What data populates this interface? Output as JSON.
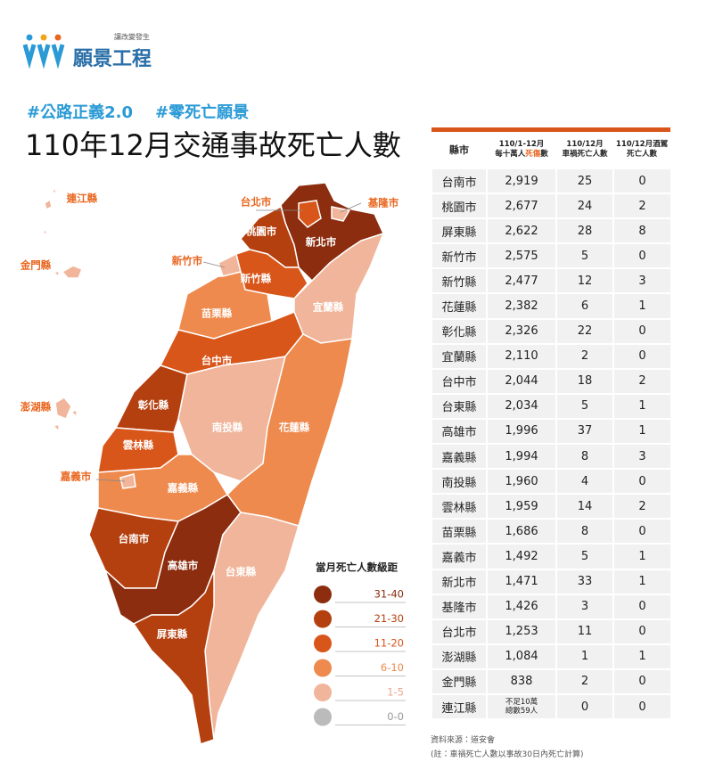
{
  "logo": {
    "tagline": "讓改變發生",
    "name": "願景工程"
  },
  "hashtags": [
    "#公路正義2.0",
    "#零死亡願景"
  ],
  "title": "110年12月交通事故死亡人數",
  "map_labels": [
    "連江縣",
    "金門縣",
    "澎湖縣",
    "嘉義市",
    "新竹市",
    "台北市",
    "基隆市",
    "桃園市",
    "新北市",
    "新竹縣",
    "苗栗縣",
    "宜蘭縣",
    "台中市",
    "彰化縣",
    "南投縣",
    "花蓮縣",
    "雲林縣",
    "嘉義縣",
    "台南市",
    "高雄市",
    "台東縣",
    "屏東縣"
  ],
  "legend": {
    "title": "當月死亡人數級距",
    "items": [
      "31-40",
      "21-30",
      "11-20",
      "6-10",
      "1-5",
      "0-0"
    ]
  },
  "table": {
    "headers": [
      [
        "縣市"
      ],
      [
        "110/1-12月",
        "每十萬人",
        "死傷",
        "數"
      ],
      [
        "110/12月",
        "車禍死亡人數"
      ],
      [
        "110/12月酒駕",
        "死亡人數"
      ]
    ],
    "rows": [
      [
        "台南市",
        "2,919",
        "25",
        "0"
      ],
      [
        "桃園市",
        "2,677",
        "24",
        "2"
      ],
      [
        "屏東縣",
        "2,622",
        "28",
        "8"
      ],
      [
        "新竹市",
        "2,575",
        "5",
        "0"
      ],
      [
        "新竹縣",
        "2,477",
        "12",
        "3"
      ],
      [
        "花蓮縣",
        "2,382",
        "6",
        "1"
      ],
      [
        "彰化縣",
        "2,326",
        "22",
        "0"
      ],
      [
        "宜蘭縣",
        "2,110",
        "2",
        "0"
      ],
      [
        "台中市",
        "2,044",
        "18",
        "2"
      ],
      [
        "台東縣",
        "2,034",
        "5",
        "1"
      ],
      [
        "高雄市",
        "1,996",
        "37",
        "1"
      ],
      [
        "嘉義縣",
        "1,994",
        "8",
        "3"
      ],
      [
        "南投縣",
        "1,960",
        "4",
        "0"
      ],
      [
        "雲林縣",
        "1,959",
        "14",
        "2"
      ],
      [
        "苗栗縣",
        "1,686",
        "8",
        "0"
      ],
      [
        "嘉義市",
        "1,492",
        "5",
        "1"
      ],
      [
        "新北市",
        "1,471",
        "33",
        "1"
      ],
      [
        "基隆市",
        "1,426",
        "3",
        "0"
      ],
      [
        "台北市",
        "1,253",
        "11",
        "0"
      ],
      [
        "澎湖縣",
        "1,084",
        "1",
        "1"
      ],
      [
        "金門縣",
        "838",
        "2",
        "0"
      ],
      [
        "連江縣",
        [
          "不足10萬",
          "總數59人"
        ],
        "0",
        "0"
      ]
    ]
  },
  "source": {
    "line1": "資料來源：道安會",
    "line2": "(註：車禍死亡人數以事故30日內死亡計算)"
  }
}
